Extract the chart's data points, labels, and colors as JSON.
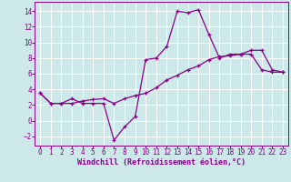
{
  "xlabel": "Windchill (Refroidissement éolien,°C)",
  "xlim": [
    -0.5,
    23.5
  ],
  "ylim": [
    -3.2,
    15.2
  ],
  "xticks": [
    0,
    1,
    2,
    3,
    4,
    5,
    6,
    7,
    8,
    9,
    10,
    11,
    12,
    13,
    14,
    15,
    16,
    17,
    18,
    19,
    20,
    21,
    22,
    23
  ],
  "yticks": [
    -2,
    0,
    2,
    4,
    6,
    8,
    10,
    12,
    14
  ],
  "bg_color": "#cce8e8",
  "line_color": "#880088",
  "grid_color": "#ffffff",
  "line1_x": [
    0,
    1,
    2,
    3,
    4,
    5,
    6,
    7,
    8,
    9,
    10,
    11,
    12,
    13,
    14,
    15,
    16,
    17,
    18,
    19,
    20,
    21,
    22,
    23
  ],
  "line1_y": [
    3.5,
    2.2,
    2.2,
    2.8,
    2.2,
    2.2,
    2.2,
    -2.5,
    -0.8,
    0.5,
    7.8,
    8.0,
    9.5,
    14.0,
    13.8,
    14.2,
    11.0,
    8.0,
    8.5,
    8.5,
    9.0,
    9.0,
    6.5,
    6.2
  ],
  "line2_x": [
    0,
    1,
    2,
    3,
    4,
    5,
    6,
    7,
    8,
    9,
    10,
    11,
    12,
    13,
    14,
    15,
    16,
    17,
    18,
    19,
    20,
    21,
    22,
    23
  ],
  "line2_y": [
    3.5,
    2.2,
    2.2,
    2.2,
    2.5,
    2.7,
    2.8,
    2.2,
    2.8,
    3.2,
    3.5,
    4.2,
    5.2,
    5.8,
    6.5,
    7.0,
    7.8,
    8.2,
    8.3,
    8.5,
    8.5,
    6.5,
    6.2,
    6.2
  ],
  "tick_fontsize": 5.5,
  "xlabel_fontsize": 6.0
}
